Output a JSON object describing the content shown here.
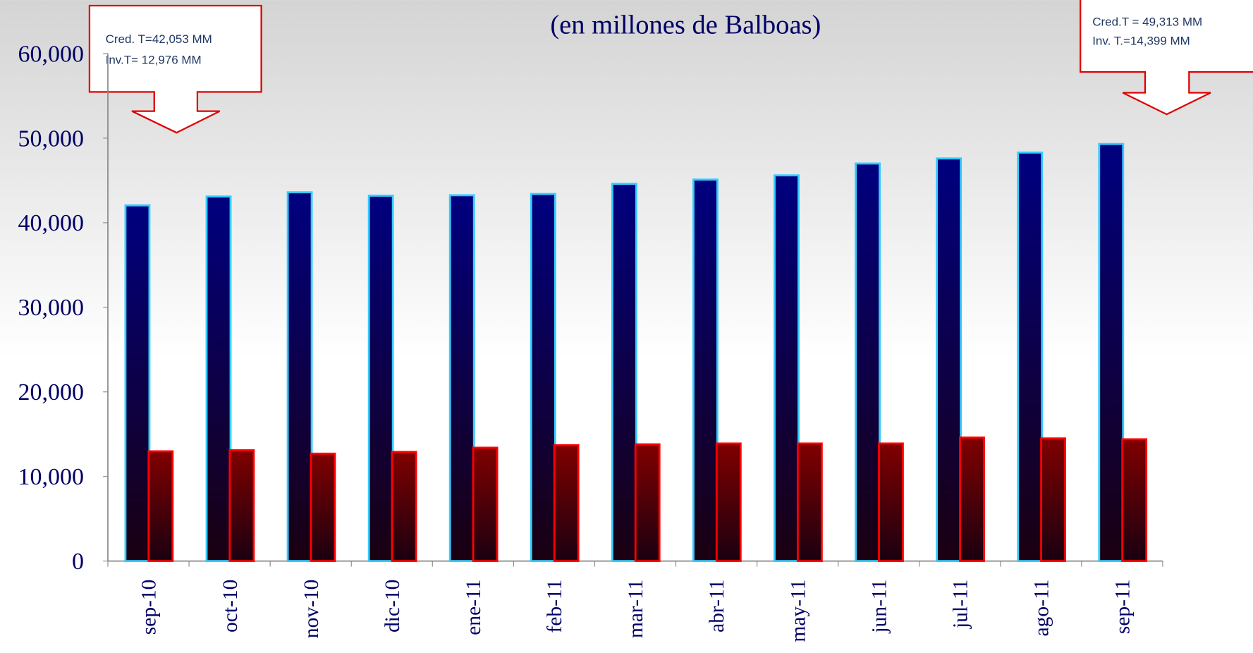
{
  "chart_data": {
    "type": "bar",
    "title": "(en millones de Balboas)",
    "categories": [
      "sep-10",
      "oct-10",
      "nov-10",
      "dic-10",
      "ene-11",
      "feb-11",
      "mar-11",
      "abr-11",
      "may-11",
      "jun-11",
      "jul-11",
      "ago-11",
      "sep-11"
    ],
    "series": [
      {
        "color": "#000080",
        "stroke": "#33ccff",
        "values": [
          42053,
          43100,
          43600,
          43200,
          43250,
          43400,
          44600,
          45100,
          45600,
          47000,
          47600,
          48300,
          49313
        ]
      },
      {
        "color": "#800000",
        "stroke": "#ff0000",
        "values": [
          12976,
          13100,
          12700,
          12900,
          13400,
          13700,
          13800,
          13900,
          13900,
          13900,
          14600,
          14500,
          14399
        ]
      }
    ],
    "ylim": [
      0,
      60000
    ],
    "yticks": [
      0,
      {
        "value": 10000,
        "label": "10,000"
      },
      {
        "value": 20000,
        "label": "20,000"
      },
      {
        "value": 30000,
        "label": "30,000"
      },
      {
        "value": 40000,
        "label": "40,000"
      },
      {
        "value": 50000,
        "label": "50,000"
      },
      {
        "value": 60000,
        "label": "60,000"
      }
    ],
    "annotations": [
      [
        "Cred. T=42,053 MM",
        "Inv.T= 12,976 MM"
      ],
      [
        "Cred.T = 49,313 MM",
        "Inv. T.=14,399 MM"
      ]
    ]
  }
}
